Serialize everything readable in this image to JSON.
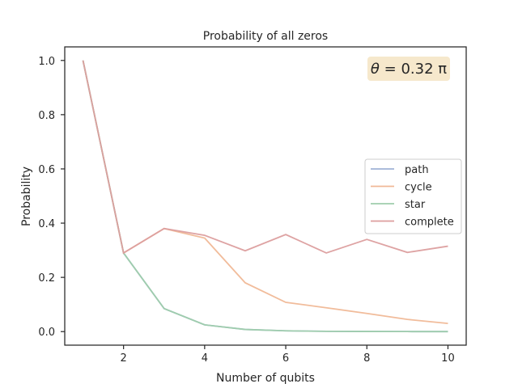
{
  "chart_data": {
    "type": "line",
    "title": "Probability of all zeros",
    "xlabel": "Number of qubits",
    "ylabel": "Probability",
    "xlim": [
      0.55,
      10.45
    ],
    "ylim": [
      -0.05,
      1.05
    ],
    "xticks": [
      2,
      4,
      6,
      8,
      10
    ],
    "yticks": [
      0.0,
      0.2,
      0.4,
      0.6,
      0.8,
      1.0
    ],
    "xtick_labels": [
      "2",
      "4",
      "6",
      "8",
      "10"
    ],
    "ytick_labels": [
      "0.0",
      "0.2",
      "0.4",
      "0.6",
      "0.8",
      "1.0"
    ],
    "grid": false,
    "legend_position": "center-right",
    "annotation": {
      "symbol": "θ",
      "text": " = 0.32 π",
      "position": "top-right",
      "box_color": "#f6e8cc"
    },
    "x": [
      1,
      2,
      3,
      4,
      5,
      6,
      7,
      8,
      9,
      10
    ],
    "series": [
      {
        "name": "path",
        "color": "#9fb3d6",
        "values": [
          1.0,
          0.29,
          0.085,
          0.025,
          0.008,
          0.003,
          0.001,
          0.0005,
          0.0002,
          0.0001
        ]
      },
      {
        "name": "cycle",
        "color": "#f0b896",
        "values": [
          1.0,
          0.29,
          0.38,
          0.345,
          0.18,
          0.108,
          0.088,
          0.067,
          0.045,
          0.03
        ]
      },
      {
        "name": "star",
        "color": "#9fcdab",
        "values": [
          1.0,
          0.29,
          0.085,
          0.025,
          0.008,
          0.003,
          0.001,
          0.0005,
          0.0002,
          0.0001
        ]
      },
      {
        "name": "complete",
        "color": "#dc9e9e",
        "values": [
          1.0,
          0.29,
          0.38,
          0.355,
          0.298,
          0.358,
          0.29,
          0.34,
          0.292,
          0.315
        ]
      }
    ]
  }
}
